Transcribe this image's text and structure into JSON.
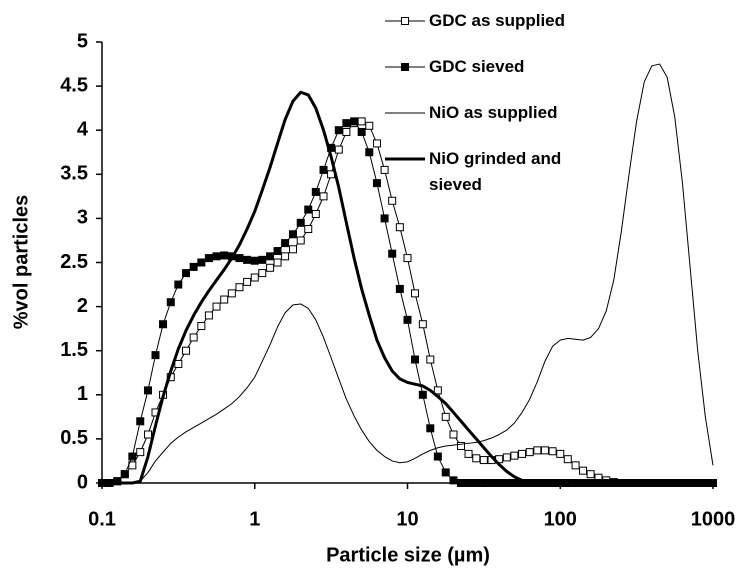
{
  "chart_data": {
    "type": "line",
    "xlabel": "Particle size (µm)",
    "ylabel": "%vol particles",
    "xscale": "log",
    "xlim": [
      0.1,
      1000
    ],
    "xticks": [
      0.1,
      1,
      10,
      100,
      1000
    ],
    "ylim": [
      0,
      5
    ],
    "yticks": [
      0,
      0.5,
      1,
      1.5,
      2,
      2.5,
      3,
      3.5,
      4,
      4.5,
      5
    ],
    "grid": false,
    "legend": "upper right",
    "x": [
      0.1,
      0.112,
      0.126,
      0.141,
      0.158,
      0.178,
      0.2,
      0.224,
      0.251,
      0.282,
      0.316,
      0.355,
      0.398,
      0.447,
      0.501,
      0.562,
      0.631,
      0.708,
      0.794,
      0.891,
      1,
      1.12,
      1.26,
      1.41,
      1.58,
      1.78,
      2,
      2.24,
      2.51,
      2.82,
      3.16,
      3.55,
      3.98,
      4.47,
      5.01,
      5.62,
      6.31,
      7.08,
      7.94,
      8.91,
      10,
      11.2,
      12.6,
      14.1,
      15.8,
      17.8,
      20,
      22.4,
      25.1,
      28.2,
      31.6,
      35.5,
      39.8,
      44.7,
      50.1,
      56.2,
      63.1,
      70.8,
      79.4,
      89.1,
      100,
      112,
      126,
      141,
      158,
      178,
      200,
      224,
      251,
      282,
      316,
      355,
      398,
      447,
      501,
      562,
      631,
      708,
      794,
      891,
      1000
    ],
    "series": [
      {
        "name": "GDC as supplied",
        "color": "#000000",
        "marker": "open-square",
        "line_width": 1,
        "values": [
          0,
          0,
          0.02,
          0.1,
          0.2,
          0.35,
          0.55,
          0.8,
          1.0,
          1.2,
          1.35,
          1.5,
          1.65,
          1.78,
          1.9,
          2.0,
          2.08,
          2.15,
          2.22,
          2.28,
          2.33,
          2.38,
          2.44,
          2.5,
          2.57,
          2.65,
          2.75,
          2.88,
          3.05,
          3.25,
          3.5,
          3.78,
          3.98,
          4.08,
          4.1,
          4.05,
          3.85,
          3.55,
          3.2,
          2.9,
          2.55,
          2.15,
          1.8,
          1.4,
          1.05,
          0.75,
          0.55,
          0.42,
          0.33,
          0.28,
          0.26,
          0.26,
          0.27,
          0.29,
          0.31,
          0.33,
          0.35,
          0.37,
          0.37,
          0.36,
          0.33,
          0.27,
          0.2,
          0.14,
          0.1,
          0.06,
          0.03,
          0.01,
          0,
          0,
          0,
          0,
          0,
          0,
          0,
          0,
          0,
          0,
          0,
          0,
          0
        ]
      },
      {
        "name": "GDC sieved",
        "color": "#000000",
        "marker": "filled-square",
        "line_width": 1,
        "values": [
          0,
          0,
          0.02,
          0.1,
          0.3,
          0.7,
          1.05,
          1.45,
          1.8,
          2.05,
          2.25,
          2.38,
          2.45,
          2.5,
          2.55,
          2.57,
          2.58,
          2.57,
          2.55,
          2.53,
          2.52,
          2.53,
          2.57,
          2.63,
          2.72,
          2.82,
          2.95,
          3.1,
          3.3,
          3.55,
          3.8,
          4.0,
          4.08,
          4.1,
          3.98,
          3.75,
          3.4,
          3.0,
          2.6,
          2.2,
          1.85,
          1.4,
          1.0,
          0.62,
          0.3,
          0.12,
          0.03,
          0,
          0,
          0,
          0,
          0,
          0,
          0,
          0,
          0,
          0,
          0,
          0,
          0,
          0,
          0,
          0,
          0,
          0,
          0,
          0,
          0,
          0,
          0,
          0,
          0,
          0,
          0,
          0,
          0,
          0,
          0,
          0,
          0,
          0
        ]
      },
      {
        "name": "NiO as supplied",
        "color": "#000000",
        "marker": "none",
        "line_width": 1,
        "values": [
          0,
          0,
          0,
          0,
          0,
          0.02,
          0.12,
          0.25,
          0.35,
          0.45,
          0.52,
          0.58,
          0.63,
          0.68,
          0.73,
          0.78,
          0.84,
          0.9,
          0.98,
          1.08,
          1.2,
          1.38,
          1.57,
          1.77,
          1.93,
          2.02,
          2.03,
          1.98,
          1.85,
          1.65,
          1.42,
          1.18,
          0.95,
          0.76,
          0.6,
          0.47,
          0.37,
          0.3,
          0.25,
          0.23,
          0.24,
          0.28,
          0.33,
          0.37,
          0.4,
          0.42,
          0.43,
          0.44,
          0.45,
          0.46,
          0.48,
          0.51,
          0.55,
          0.6,
          0.68,
          0.8,
          0.95,
          1.15,
          1.38,
          1.55,
          1.62,
          1.64,
          1.63,
          1.62,
          1.65,
          1.75,
          1.95,
          2.3,
          2.85,
          3.5,
          4.1,
          4.55,
          4.73,
          4.75,
          4.6,
          4.15,
          3.4,
          2.45,
          1.5,
          0.75,
          0.2
        ]
      },
      {
        "name": "NiO grinded and sieved",
        "color": "#000000",
        "marker": "none",
        "line_width": 3,
        "values": [
          0,
          0,
          0,
          0,
          0,
          0.02,
          0.3,
          0.65,
          0.98,
          1.27,
          1.52,
          1.73,
          1.9,
          2.05,
          2.18,
          2.3,
          2.42,
          2.55,
          2.7,
          2.88,
          3.08,
          3.32,
          3.58,
          3.85,
          4.12,
          4.33,
          4.43,
          4.4,
          4.25,
          4.0,
          3.7,
          3.35,
          2.95,
          2.55,
          2.2,
          1.9,
          1.62,
          1.42,
          1.27,
          1.18,
          1.14,
          1.12,
          1.1,
          1.05,
          0.98,
          0.9,
          0.8,
          0.7,
          0.6,
          0.5,
          0.4,
          0.3,
          0.21,
          0.13,
          0.07,
          0.03,
          0.01,
          0,
          0,
          0,
          0,
          0,
          0,
          0,
          0,
          0,
          0,
          0,
          0,
          0,
          0,
          0,
          0,
          0,
          0,
          0,
          0,
          0,
          0,
          0,
          0
        ]
      }
    ]
  }
}
